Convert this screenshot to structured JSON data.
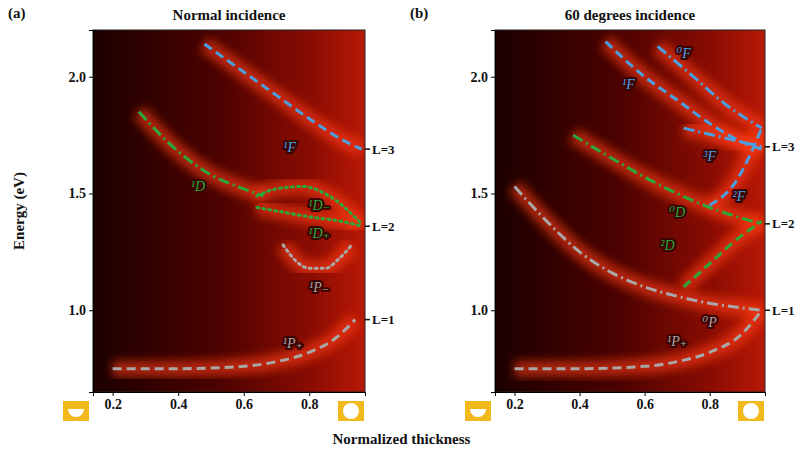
{
  "chart_data": [
    {
      "type": "line",
      "label": "(a)",
      "title": "Normal incidence",
      "ylabel": "Energy (eV)",
      "xlabel": "Normalized thickness",
      "xlim": [
        0.14,
        0.97
      ],
      "ylim": [
        0.65,
        2.2
      ],
      "xticks": [
        0.2,
        0.4,
        0.6,
        0.8
      ],
      "yticks": [
        {
          "value": 1,
          "label": "1.0"
        },
        1.5,
        {
          "value": 2,
          "label": "2.0"
        }
      ],
      "levels": [
        {
          "label": "L=1",
          "value": 0.96
        },
        {
          "label": "L=2",
          "value": 1.36
        },
        {
          "label": "L=3",
          "value": 1.69
        }
      ],
      "series": [
        {
          "name": "¹F",
          "color": "#4a9fe0",
          "line_style": "dashed",
          "label_x": 0.74,
          "label_y": 1.7,
          "x": [
            0.48,
            0.6,
            0.7,
            0.8,
            0.9,
            0.96
          ],
          "values": [
            2.14,
            2.02,
            1.92,
            1.82,
            1.73,
            1.69
          ]
        },
        {
          "name": "¹D",
          "color": "#2aa83c",
          "line_style": "dash-dot",
          "label_x": 0.46,
          "label_y": 1.53,
          "x": [
            0.28,
            0.4,
            0.5,
            0.6,
            0.66
          ],
          "values": [
            1.85,
            1.68,
            1.58,
            1.52,
            1.49
          ]
        },
        {
          "name": "¹D₋",
          "color": "#2aa83c",
          "line_style": "dotted",
          "label_x": 0.83,
          "label_y": 1.45,
          "x": [
            0.64,
            0.7,
            0.78,
            0.86,
            0.96
          ],
          "values": [
            1.49,
            1.52,
            1.53,
            1.49,
            1.37
          ]
        },
        {
          "name": "¹D₊",
          "color": "#2aa83c",
          "line_style": "dotted",
          "label_x": 0.83,
          "label_y": 1.33,
          "x": [
            0.64,
            0.72,
            0.8,
            0.9,
            0.96
          ],
          "values": [
            1.44,
            1.42,
            1.4,
            1.38,
            1.36
          ]
        },
        {
          "name": "¹P₋",
          "color": "#a8a8a8",
          "line_style": "dotted",
          "label_x": 0.83,
          "label_y": 1.1,
          "x": [
            0.72,
            0.76,
            0.8,
            0.85,
            0.89,
            0.93
          ],
          "values": [
            1.28,
            1.21,
            1.18,
            1.18,
            1.22,
            1.28
          ]
        },
        {
          "name": "¹P₊",
          "color": "#a8a8a8",
          "line_style": "dashed",
          "label_x": 0.75,
          "label_y": 0.86,
          "x": [
            0.2,
            0.4,
            0.6,
            0.7,
            0.8,
            0.88,
            0.94
          ],
          "values": [
            0.75,
            0.75,
            0.76,
            0.78,
            0.82,
            0.88,
            0.96
          ]
        }
      ]
    },
    {
      "type": "line",
      "label": "(b)",
      "title": "60 degrees incidence",
      "xlim": [
        0.14,
        0.97
      ],
      "ylim": [
        0.65,
        2.2
      ],
      "xticks": [
        0.2,
        0.4,
        0.6,
        0.8
      ],
      "yticks": [
        {
          "value": 1,
          "label": "1.0"
        },
        1.5,
        {
          "value": 2,
          "label": "2.0"
        }
      ],
      "levels": [
        {
          "label": "L=1",
          "value": 1.0
        },
        {
          "label": "L=2",
          "value": 1.37
        },
        {
          "label": "L=3",
          "value": 1.7
        }
      ],
      "series": [
        {
          "name": "⁰F",
          "color": "#4a9fe0",
          "line_style": "dash-dot",
          "label_x": 0.72,
          "label_y": 2.1,
          "x": [
            0.64,
            0.75,
            0.85,
            0.96
          ],
          "values": [
            2.13,
            2.0,
            1.88,
            1.78
          ]
        },
        {
          "name": "¹F",
          "color": "#4a9fe0",
          "line_style": "dashed",
          "label_x": 0.55,
          "label_y": 1.97,
          "x": [
            0.48,
            0.6,
            0.7,
            0.8,
            0.9,
            0.96
          ],
          "values": [
            2.15,
            2.0,
            1.9,
            1.8,
            1.72,
            1.69
          ]
        },
        {
          "name": "³F",
          "color": "#4a9fe0",
          "line_style": "dash-dot",
          "label_x": 0.8,
          "label_y": 1.66,
          "x": [
            0.72,
            0.84,
            0.96
          ],
          "values": [
            1.78,
            1.74,
            1.7
          ]
        },
        {
          "name": "²F",
          "color": "#4a9fe0",
          "line_style": "dashed",
          "label_x": 0.89,
          "label_y": 1.49,
          "x": [
            0.8,
            0.88,
            0.96
          ],
          "values": [
            1.45,
            1.55,
            1.78
          ]
        },
        {
          "name": "⁰D",
          "color": "#2aa83c",
          "line_style": "dash-dot",
          "label_x": 0.7,
          "label_y": 1.42,
          "x": [
            0.38,
            0.5,
            0.6,
            0.7,
            0.8,
            0.96
          ],
          "values": [
            1.75,
            1.65,
            1.57,
            1.5,
            1.44,
            1.37
          ]
        },
        {
          "name": "²D",
          "color": "#2aa83c",
          "line_style": "dashed",
          "label_x": 0.67,
          "label_y": 1.28,
          "x": [
            0.72,
            0.8,
            0.88,
            0.96
          ],
          "values": [
            1.1,
            1.2,
            1.3,
            1.38
          ]
        },
        {
          "name": "⁰P",
          "color": "#a8a8a8",
          "line_style": "dash-dot",
          "label_x": 0.8,
          "label_y": 0.95,
          "x": [
            0.2,
            0.3,
            0.4,
            0.5,
            0.6,
            0.7,
            0.8,
            0.9,
            0.96
          ],
          "values": [
            1.53,
            1.38,
            1.25,
            1.16,
            1.1,
            1.06,
            1.03,
            1.01,
            1.0
          ]
        },
        {
          "name": "¹P₊",
          "color": "#a8a8a8",
          "line_style": "dashed",
          "label_x": 0.7,
          "label_y": 0.87,
          "x": [
            0.2,
            0.4,
            0.6,
            0.7,
            0.8,
            0.9,
            0.96
          ],
          "values": [
            0.75,
            0.75,
            0.76,
            0.78,
            0.82,
            0.9,
            1.0
          ]
        }
      ]
    }
  ]
}
